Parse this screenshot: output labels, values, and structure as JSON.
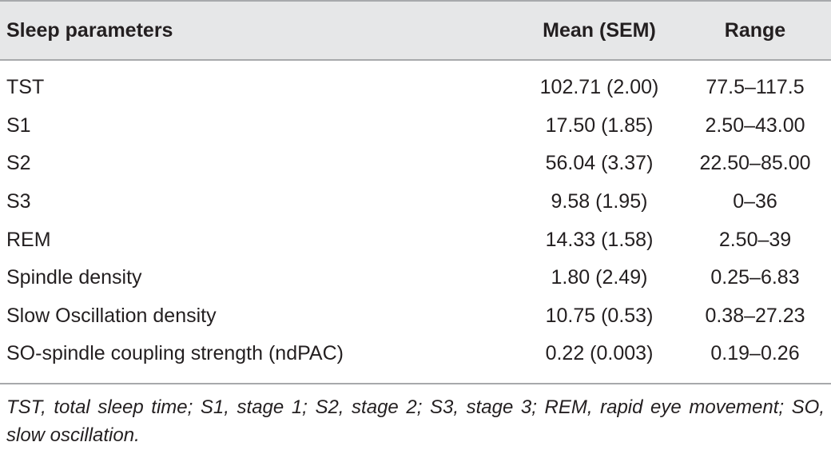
{
  "table": {
    "headers": [
      "Sleep parameters",
      "Mean (SEM)",
      "Range"
    ],
    "rows": [
      [
        "TST",
        "102.71 (2.00)",
        "77.5–117.5"
      ],
      [
        "S1",
        "17.50 (1.85)",
        "2.50–43.00"
      ],
      [
        "S2",
        "56.04 (3.37)",
        "22.50–85.00"
      ],
      [
        "S3",
        "9.58 (1.95)",
        "0–36"
      ],
      [
        "REM",
        "14.33 (1.58)",
        "2.50–39"
      ],
      [
        "Spindle density",
        "1.80 (2.49)",
        "0.25–6.83"
      ],
      [
        "Slow Oscillation density",
        "10.75 (0.53)",
        "0.38–27.23"
      ],
      [
        "SO-spindle coupling strength (ndPAC)",
        "0.22 (0.003)",
        "0.19–0.26"
      ]
    ]
  },
  "footnote": "TST, total sleep time; S1, stage 1; S2, stage 2; S3, stage 3; REM, rapid eye movement; SO, slow oscillation."
}
